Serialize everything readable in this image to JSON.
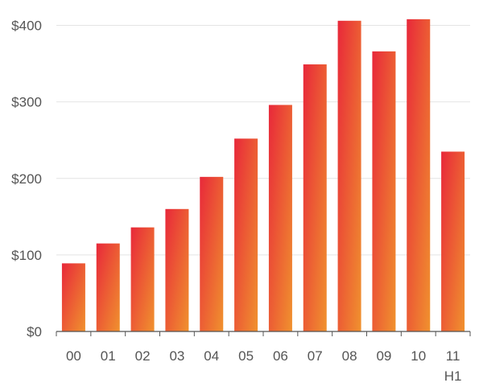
{
  "chart_data": {
    "type": "bar",
    "categories": [
      "00",
      "01",
      "02",
      "03",
      "04",
      "05",
      "06",
      "07",
      "08",
      "09",
      "10",
      "11"
    ],
    "category_sublabels": [
      "",
      "",
      "",
      "",
      "",
      "",
      "",
      "",
      "",
      "",
      "",
      "H1"
    ],
    "values": [
      89,
      115,
      136,
      160,
      202,
      252,
      296,
      349,
      406,
      366,
      408,
      235
    ],
    "y_ticks": [
      0,
      100,
      200,
      300,
      400
    ],
    "y_tick_labels": [
      "$0",
      "$100",
      "$200",
      "$300",
      "$400"
    ],
    "ylim": [
      0,
      410
    ],
    "grid": true,
    "legend": "none",
    "colors": {
      "bar_top": "#e8283a",
      "bar_bottom": "#f0922e",
      "grid": "#e4e4e4",
      "axis": "#555555"
    }
  }
}
